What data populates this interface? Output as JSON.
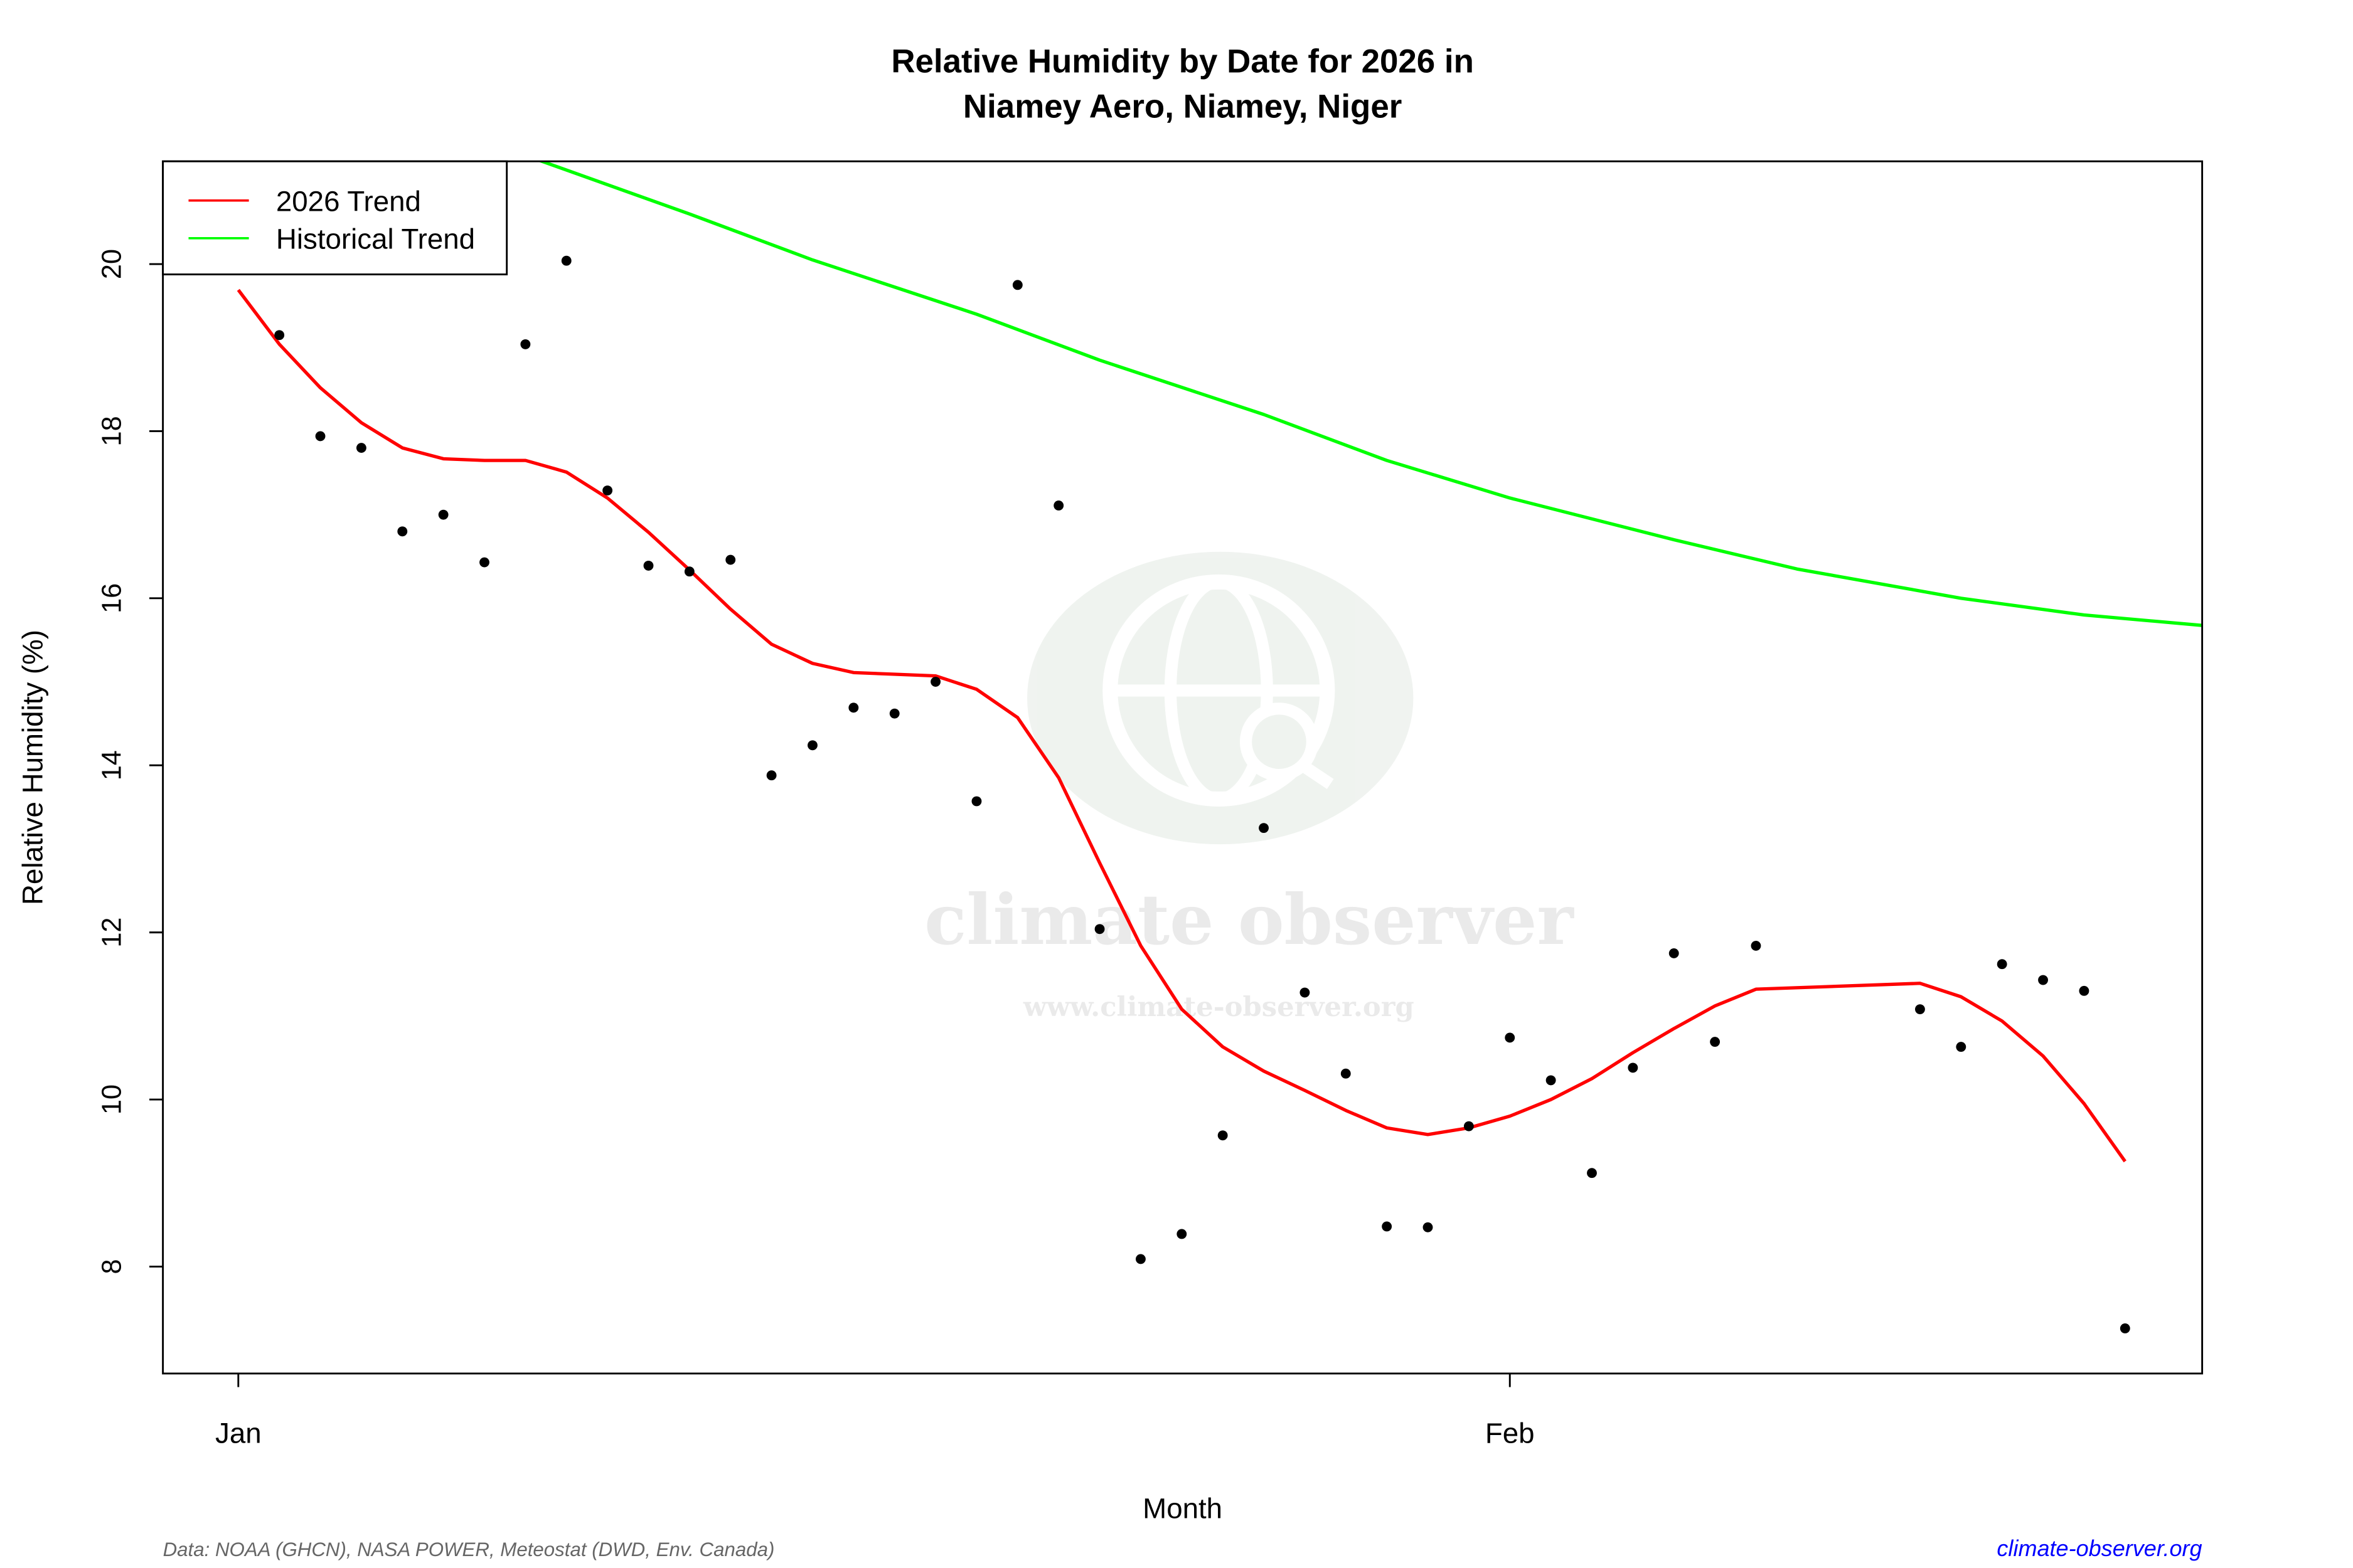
{
  "chart_data": {
    "type": "scatter",
    "title": "Relative Humidity by Date for 2026 in",
    "subtitle": "Niamey Aero, Niamey, Niger",
    "xlabel": "Month",
    "ylabel": "Relative Humidity (%)",
    "x_ticks": [
      {
        "label": "Jan",
        "date": "2026-01-01"
      },
      {
        "label": "Feb",
        "date": "2026-02-01"
      }
    ],
    "y_ticks": [
      8,
      10,
      12,
      14,
      16,
      18,
      20
    ],
    "xlim": [
      "2026-01-01",
      "2026-02-18"
    ],
    "ylim": [
      6.72,
      21.23
    ],
    "grid": false,
    "legend_position": "top-left",
    "series": [
      {
        "name": "Observations",
        "kind": "points",
        "color": "#000000",
        "dates": [
          "2026-01-02",
          "2026-01-03",
          "2026-01-04",
          "2026-01-05",
          "2026-01-06",
          "2026-01-07",
          "2026-01-08",
          "2026-01-09",
          "2026-01-10",
          "2026-01-11",
          "2026-01-12",
          "2026-01-13",
          "2026-01-14",
          "2026-01-15",
          "2026-01-16",
          "2026-01-17",
          "2026-01-18",
          "2026-01-19",
          "2026-01-20",
          "2026-01-21",
          "2026-01-22",
          "2026-01-23",
          "2026-01-24",
          "2026-01-25",
          "2026-01-26",
          "2026-01-27",
          "2026-01-28",
          "2026-01-29",
          "2026-01-30",
          "2026-01-31",
          "2026-02-01",
          "2026-02-02",
          "2026-02-03",
          "2026-02-04",
          "2026-02-05",
          "2026-02-06",
          "2026-02-07",
          "2026-02-11",
          "2026-02-12",
          "2026-02-13",
          "2026-02-14",
          "2026-02-15",
          "2026-02-16"
        ],
        "values": [
          19.15,
          17.94,
          17.8,
          16.8,
          17.0,
          16.43,
          19.04,
          20.04,
          17.29,
          16.39,
          16.32,
          16.46,
          13.88,
          14.24,
          14.69,
          14.62,
          15.0,
          13.57,
          19.75,
          17.11,
          12.04,
          8.09,
          8.39,
          9.57,
          13.25,
          11.28,
          10.31,
          8.48,
          8.47,
          9.68,
          10.74,
          10.23,
          9.12,
          10.38,
          11.75,
          10.69,
          11.84,
          11.08,
          10.63,
          11.62,
          11.43,
          11.3,
          7.26
        ]
      },
      {
        "name": "2026 Trend",
        "kind": "line",
        "color": "#ff0000",
        "dates": [
          "2026-01-01",
          "2026-01-02",
          "2026-01-03",
          "2026-01-04",
          "2026-01-05",
          "2026-01-06",
          "2026-01-07",
          "2026-01-08",
          "2026-01-09",
          "2026-01-10",
          "2026-01-11",
          "2026-01-12",
          "2026-01-13",
          "2026-01-14",
          "2026-01-15",
          "2026-01-16",
          "2026-01-17",
          "2026-01-18",
          "2026-01-19",
          "2026-01-20",
          "2026-01-21",
          "2026-01-22",
          "2026-01-23",
          "2026-01-24",
          "2026-01-25",
          "2026-01-26",
          "2026-01-27",
          "2026-01-28",
          "2026-01-29",
          "2026-01-30",
          "2026-01-31",
          "2026-02-01",
          "2026-02-02",
          "2026-02-03",
          "2026-02-04",
          "2026-02-05",
          "2026-02-06",
          "2026-02-07",
          "2026-02-11",
          "2026-02-12",
          "2026-02-13",
          "2026-02-14",
          "2026-02-15",
          "2026-02-16"
        ],
        "values": [
          19.69,
          19.04,
          18.52,
          18.1,
          17.8,
          17.67,
          17.65,
          17.65,
          17.51,
          17.2,
          16.79,
          16.34,
          15.87,
          15.45,
          15.22,
          15.11,
          15.09,
          15.07,
          14.91,
          14.57,
          13.85,
          12.83,
          11.84,
          11.08,
          10.63,
          10.34,
          10.11,
          9.87,
          9.66,
          9.58,
          9.66,
          9.8,
          10.0,
          10.25,
          10.56,
          10.85,
          11.12,
          11.32,
          11.39,
          11.23,
          10.94,
          10.52,
          9.95,
          9.26
        ]
      },
      {
        "name": "Historical Trend",
        "kind": "line",
        "color": "#00ff00",
        "dates": [
          "2026-01-01",
          "2026-01-05",
          "2026-01-08",
          "2026-01-12",
          "2026-01-15",
          "2026-01-19",
          "2026-01-22",
          "2026-01-26",
          "2026-01-29",
          "2026-02-01",
          "2026-02-05",
          "2026-02-08",
          "2026-02-12",
          "2026-02-15",
          "2026-02-18"
        ],
        "values": [
          22.6,
          21.85,
          21.3,
          20.6,
          20.05,
          19.4,
          18.85,
          18.2,
          17.65,
          17.2,
          16.7,
          16.35,
          16.0,
          15.8,
          15.67
        ]
      }
    ]
  },
  "footer": {
    "source": "Data: NOAA (GHCN), NASA POWER, Meteostat (DWD, Env. Canada)",
    "site": "climate-observer.org",
    "site_color": "#0000ff"
  },
  "watermark": {
    "name": "climate observer",
    "url": "www.climate-observer.org"
  }
}
